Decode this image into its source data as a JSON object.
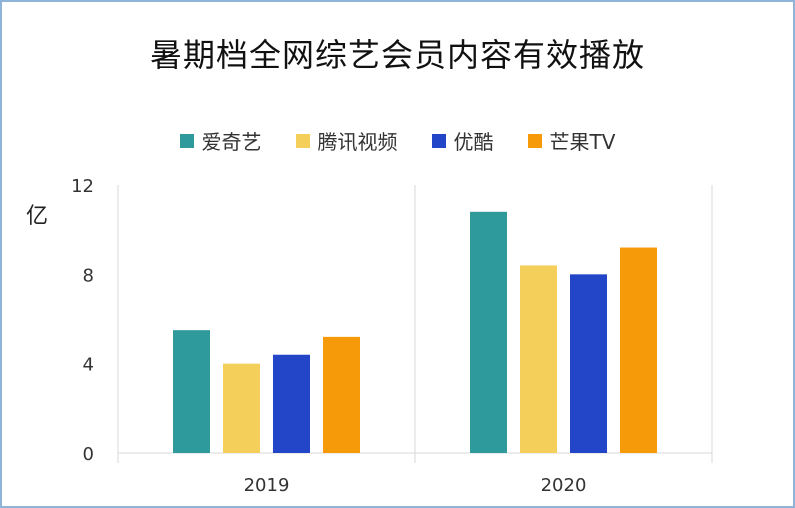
{
  "chart_data": {
    "type": "bar",
    "title": "暑期档全网综艺会员内容有效播放",
    "ylabel": "亿",
    "categories": [
      "2019",
      "2020"
    ],
    "ylim": [
      0,
      12
    ],
    "yticks": [
      0,
      4,
      8,
      12
    ],
    "series": [
      {
        "name": "爱奇艺",
        "color": "#2e9a9c",
        "values": [
          5.5,
          10.8
        ]
      },
      {
        "name": "腾讯视频",
        "color": "#f4cf5a",
        "values": [
          4.0,
          8.4
        ]
      },
      {
        "name": "优酷",
        "color": "#2346c8",
        "values": [
          4.4,
          8.0
        ]
      },
      {
        "name": "芒果TV",
        "color": "#f79a0a",
        "values": [
          5.2,
          9.2
        ]
      }
    ],
    "legend_position": "top",
    "grid": false
  }
}
